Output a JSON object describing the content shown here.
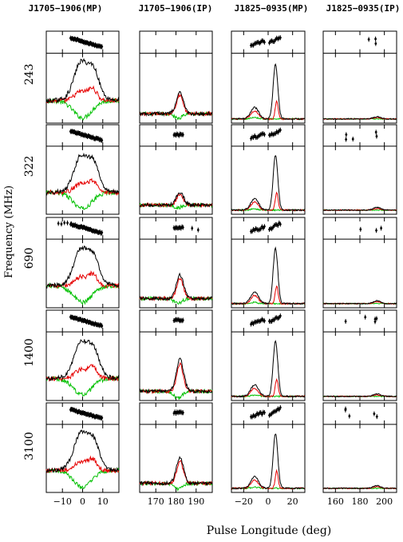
{
  "chart_data": {
    "type": "line",
    "ylabel": "Frequency (MHz)",
    "xlabel": "Pulse Longitude (deg)",
    "columns": [
      {
        "title": "J1705−1906(MP)",
        "xlim": [
          -18,
          18
        ],
        "ticks": [
          -10,
          0,
          10
        ],
        "tick_labels": [
          "−10",
          "0",
          "10"
        ]
      },
      {
        "title": "J1705−1906(IP)",
        "xlim": [
          162,
          198
        ],
        "ticks": [
          170,
          180,
          190
        ],
        "tick_labels": [
          "170",
          "180",
          "190"
        ]
      },
      {
        "title": "J1825−0935(MP)",
        "xlim": [
          -30,
          30
        ],
        "ticks": [
          -20,
          0,
          20
        ],
        "tick_labels": [
          "−20",
          "0",
          "20"
        ]
      },
      {
        "title": "J1825−0935(IP)",
        "xlim": [
          150,
          210
        ],
        "ticks": [
          160,
          180,
          200
        ],
        "tick_labels": [
          "160",
          "180",
          "200"
        ]
      }
    ],
    "rows": [
      {
        "frequency": "243"
      },
      {
        "frequency": "322"
      },
      {
        "frequency": "690"
      },
      {
        "frequency": "1400"
      },
      {
        "frequency": "3100"
      }
    ],
    "series": [
      {
        "color": "#000000"
      },
      {
        "color": "#e60000"
      },
      {
        "color": "#00c000"
      }
    ]
  }
}
